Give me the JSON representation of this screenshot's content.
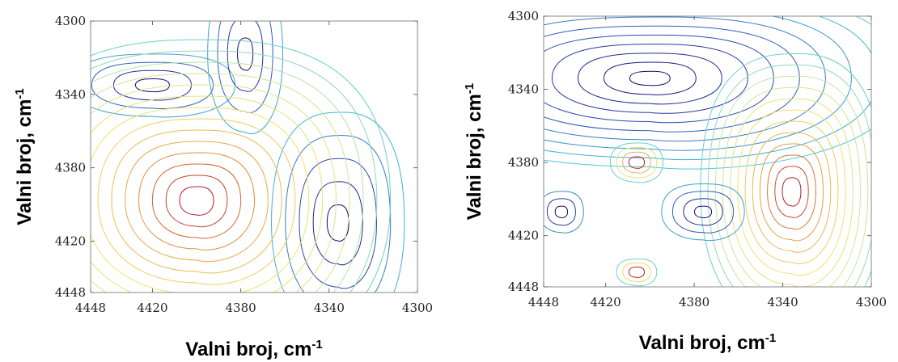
{
  "chart_data": [
    {
      "type": "contour",
      "xlabel": "Valni broj, cm",
      "xlabel_sup": "-1",
      "ylabel": "Valni broj, cm",
      "ylabel_sup": "-1",
      "xlim": [
        4448,
        4300
      ],
      "ylim": [
        4300,
        4448
      ],
      "x_ticks": [
        "4448",
        "4420",
        "4380",
        "4340",
        "4300"
      ],
      "y_ticks": [
        "4300",
        "4340",
        "4380",
        "4420",
        "4448"
      ],
      "x_tick_values": [
        4448,
        4420,
        4380,
        4340,
        4300
      ],
      "y_tick_values": [
        4300,
        4340,
        4380,
        4420,
        4448
      ],
      "colormap": [
        "#1a0a6e",
        "#2e4fb8",
        "#44c6d8",
        "#c9e8a0",
        "#f0e36a",
        "#e7a040",
        "#b51f2e"
      ],
      "features": [
        {
          "kind": "negative",
          "x": 4420,
          "y": 4335,
          "sx": 22,
          "sy": 10,
          "levels": 4
        },
        {
          "kind": "negative",
          "x": 4336,
          "y": 4410,
          "sx": 14,
          "sy": 28,
          "levels": 5
        },
        {
          "kind": "negative",
          "x": 4378,
          "y": 4318,
          "sx": 10,
          "sy": 25,
          "levels": 4
        },
        {
          "kind": "positive",
          "x": 4400,
          "y": 4398,
          "sx": 22,
          "sy": 22,
          "levels": 14
        }
      ]
    },
    {
      "type": "contour",
      "xlabel": "Valni broj, cm",
      "xlabel_sup": "-1",
      "ylabel": "Valni broj, cm",
      "ylabel_sup": "-1",
      "xlim": [
        4448,
        4300
      ],
      "ylim": [
        4300,
        4448
      ],
      "x_ticks": [
        "4448",
        "4420",
        "4380",
        "4340",
        "4300"
      ],
      "y_ticks": [
        "4300",
        "4340",
        "4380",
        "4420",
        "4448"
      ],
      "x_tick_values": [
        4448,
        4420,
        4380,
        4340,
        4300
      ],
      "y_tick_values": [
        4300,
        4340,
        4380,
        4420,
        4448
      ],
      "colormap": [
        "#1a0a6e",
        "#2e4fb8",
        "#44c6d8",
        "#c9e8a0",
        "#f0e36a",
        "#e7a040",
        "#b51f2e"
      ],
      "features": [
        {
          "kind": "negative",
          "x": 4400,
          "y": 4334,
          "sx": 26,
          "sy": 11,
          "levels": 10
        },
        {
          "kind": "positive",
          "x": 4336,
          "y": 4396,
          "sx": 12,
          "sy": 22,
          "levels": 12
        },
        {
          "kind": "positive",
          "x": 4406,
          "y": 4380,
          "sx": 10,
          "sy": 9,
          "levels": 4
        },
        {
          "kind": "positive",
          "x": 4406,
          "y": 4440,
          "sx": 10,
          "sy": 8,
          "levels": 3
        },
        {
          "kind": "negative",
          "x": 4376,
          "y": 4407,
          "sx": 11,
          "sy": 9,
          "levels": 4
        },
        {
          "kind": "negative",
          "x": 4440,
          "y": 4407,
          "sx": 8,
          "sy": 9,
          "levels": 3
        }
      ]
    }
  ]
}
